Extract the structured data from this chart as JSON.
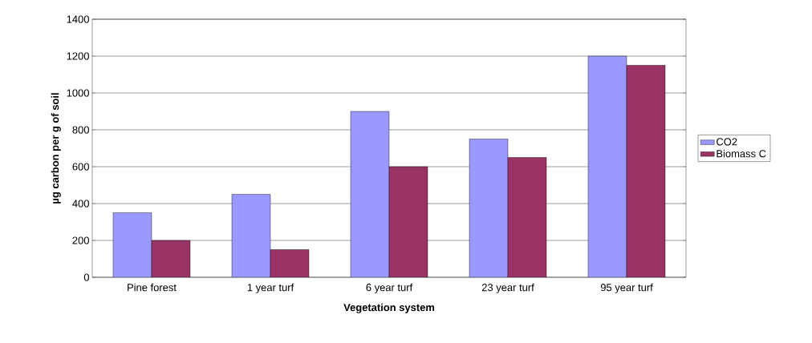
{
  "chart_data": {
    "type": "bar",
    "xlabel": "Vegetation system",
    "ylabel": "µg carbon per g of soil",
    "categories": [
      "Pine forest",
      "1 year turf",
      "6 year turf",
      "23 year turf",
      "95 year turf"
    ],
    "series": [
      {
        "name": "CO2",
        "color": "#9999ff",
        "values": [
          350,
          450,
          900,
          750,
          1200
        ]
      },
      {
        "name": "Biomass C",
        "color": "#993366",
        "values": [
          200,
          150,
          600,
          650,
          1150
        ]
      }
    ],
    "ylim": [
      0,
      1400
    ],
    "yticks": [
      0,
      200,
      400,
      600,
      800,
      1000,
      1200,
      1400
    ],
    "grid": "y",
    "legend": "right"
  }
}
